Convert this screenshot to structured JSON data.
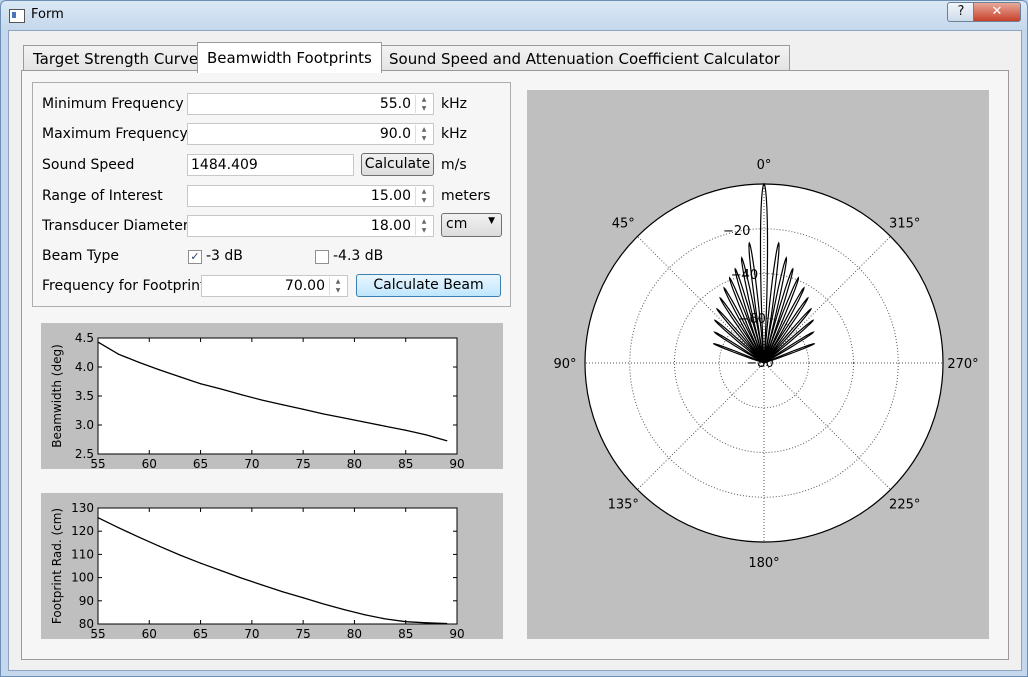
{
  "window": {
    "title": "Form",
    "help_label": "?",
    "close_label": "✕",
    "icon": "app-window-icon"
  },
  "tabs": [
    {
      "label": "Target Strength Curve",
      "active": false
    },
    {
      "label": "Beamwidth Footprints",
      "active": true
    },
    {
      "label": "Sound Speed and Attenuation Coefficient Calculator",
      "active": false
    }
  ],
  "form": {
    "min_freq": {
      "label": "Minimum Frequency",
      "value": "55.0",
      "unit": "kHz"
    },
    "max_freq": {
      "label": "Maximum Frequency",
      "value": "90.0",
      "unit": "kHz"
    },
    "sound_speed": {
      "label": "Sound Speed",
      "value": "1484.409",
      "button": "Calculate",
      "unit": "m/s"
    },
    "range": {
      "label": "Range of Interest",
      "value": "15.00",
      "unit": "meters"
    },
    "diameter": {
      "label": "Transducer Diameter",
      "value": "18.00",
      "unit": "cm"
    },
    "beam_type": {
      "label": "Beam Type",
      "option1": "-3 dB",
      "option1_checked": true,
      "option2": "-4.3 dB",
      "option2_checked": false
    },
    "footprint_freq": {
      "label": "Frequency for Footprint",
      "value": "70.00",
      "button": "Calculate Beam"
    }
  },
  "chart_data": [
    {
      "type": "line",
      "ylabel": "Beamwidth (deg)",
      "xlabel": "",
      "xlim": [
        55,
        90
      ],
      "ylim": [
        2.5,
        4.5
      ],
      "xticks": [
        "55",
        "60",
        "65",
        "70",
        "75",
        "80",
        "85",
        "90"
      ],
      "yticks": [
        "2.5",
        "3.0",
        "3.5",
        "4.0",
        "4.5"
      ],
      "x": [
        55,
        57,
        59,
        61,
        63,
        65,
        67,
        69,
        71,
        73,
        75,
        77,
        79,
        81,
        83,
        85,
        87,
        89
      ],
      "y": [
        4.43,
        4.22,
        4.08,
        3.95,
        3.83,
        3.71,
        3.62,
        3.52,
        3.43,
        3.35,
        3.27,
        3.19,
        3.12,
        3.05,
        2.98,
        2.91,
        2.83,
        2.73
      ]
    },
    {
      "type": "line",
      "ylabel": "Footprint Rad. (cm)",
      "xlabel": "",
      "xlim": [
        55,
        90
      ],
      "ylim": [
        80,
        130
      ],
      "xticks": [
        "55",
        "60",
        "65",
        "70",
        "75",
        "80",
        "85",
        "90"
      ],
      "yticks": [
        "80",
        "90",
        "100",
        "110",
        "120",
        "130"
      ],
      "x": [
        55,
        57,
        59,
        61,
        63,
        65,
        67,
        69,
        71,
        73,
        75,
        77,
        79,
        81,
        83,
        85,
        87,
        89
      ],
      "y": [
        125.8,
        121.5,
        117.4,
        113.5,
        109.7,
        106.2,
        103.0,
        99.8,
        96.8,
        93.9,
        91.3,
        88.6,
        86.2,
        84.0,
        82.2,
        81.0,
        80.5,
        80.2
      ]
    },
    {
      "type": "polar",
      "angle_labels": [
        "0°",
        "45°",
        "90°",
        "135°",
        "180°",
        "225°",
        "270°",
        "315°"
      ],
      "radial_labels": [
        "−20",
        "−40",
        "−60",
        "−80"
      ],
      "rlim": [
        -80,
        0
      ],
      "lobes": [
        {
          "angle_deg": 0,
          "level_db": 0
        },
        {
          "angle_deg": 7,
          "level_db": -26
        },
        {
          "angle_deg": -7,
          "level_db": -26
        },
        {
          "angle_deg": 12,
          "level_db": -32
        },
        {
          "angle_deg": -12,
          "level_db": -32
        },
        {
          "angle_deg": 17,
          "level_db": -36
        },
        {
          "angle_deg": -17,
          "level_db": -36
        },
        {
          "angle_deg": 22,
          "level_db": -39
        },
        {
          "angle_deg": -22,
          "level_db": -39
        },
        {
          "angle_deg": 28,
          "level_db": -42
        },
        {
          "angle_deg": -28,
          "level_db": -42
        },
        {
          "angle_deg": 34,
          "level_db": -45
        },
        {
          "angle_deg": -34,
          "level_db": -45
        },
        {
          "angle_deg": 41,
          "level_db": -48
        },
        {
          "angle_deg": -41,
          "level_db": -48
        },
        {
          "angle_deg": 49,
          "level_db": -51
        },
        {
          "angle_deg": -49,
          "level_db": -51
        },
        {
          "angle_deg": 58,
          "level_db": -54
        },
        {
          "angle_deg": -58,
          "level_db": -54
        },
        {
          "angle_deg": 69,
          "level_db": -56
        },
        {
          "angle_deg": -69,
          "level_db": -56
        }
      ]
    }
  ]
}
